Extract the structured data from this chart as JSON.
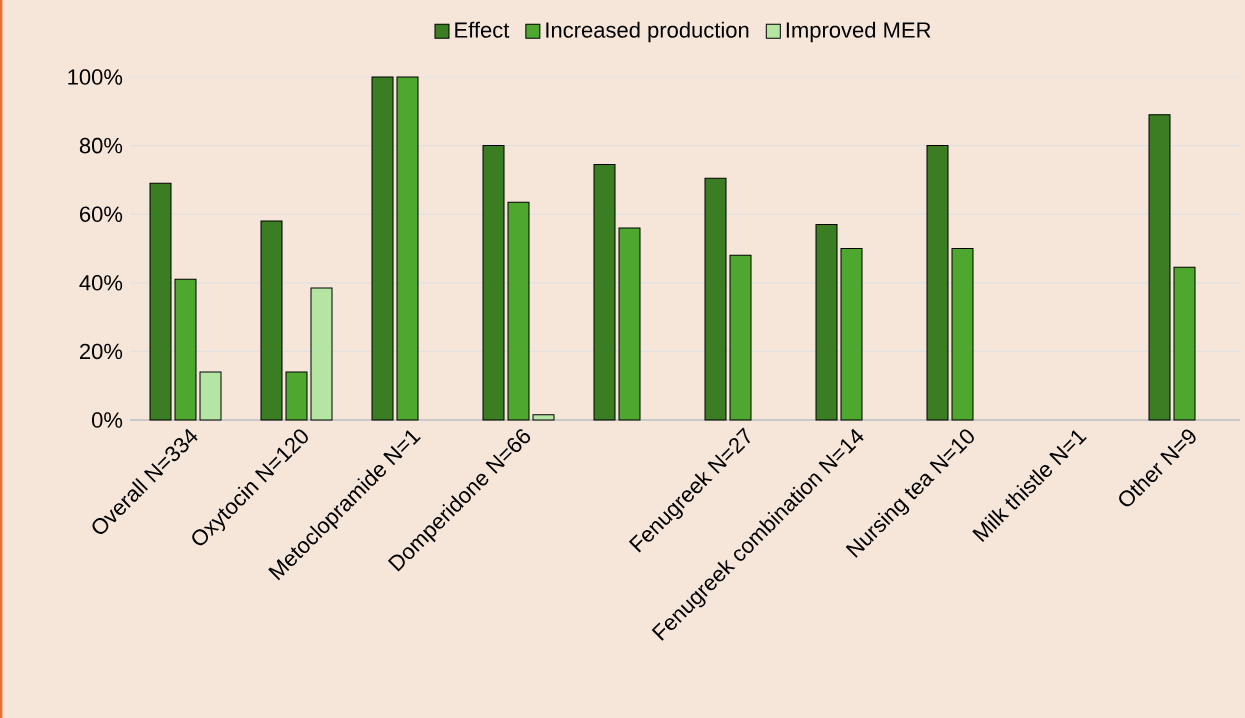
{
  "chart_data": {
    "type": "bar",
    "categories": [
      "Overall N=334",
      "Oxytocin N=120",
      "Metoclopramide N=1",
      "Domperidone N=66",
      null,
      "Fenugreek N=27",
      "Fenugreek combination N=14",
      "Nursing tea N=10",
      "Milk thistle N=1",
      "Other N=9"
    ],
    "series": [
      {
        "name": "Effect",
        "color": "#3b7d23",
        "values": [
          69,
          58,
          100,
          80,
          74.5,
          70.5,
          57,
          80,
          null,
          89
        ]
      },
      {
        "name": "Increased production",
        "color": "#4ea72e",
        "values": [
          41,
          14,
          100,
          63.5,
          56,
          48,
          50,
          50,
          null,
          44.5
        ]
      },
      {
        "name": "Improved MER",
        "color": "#b4e5a2",
        "values": [
          14,
          38.5,
          null,
          1.5,
          null,
          null,
          null,
          null,
          null,
          null
        ]
      }
    ],
    "ylim": [
      0,
      100
    ],
    "yticks": [
      {
        "value": 0,
        "label": "0%"
      },
      {
        "value": 20,
        "label": "20%"
      },
      {
        "value": 40,
        "label": "40%"
      },
      {
        "value": 60,
        "label": "60%"
      },
      {
        "value": 80,
        "label": "80%"
      },
      {
        "value": 100,
        "label": "100%"
      }
    ],
    "grid": "y",
    "legend": "top"
  }
}
